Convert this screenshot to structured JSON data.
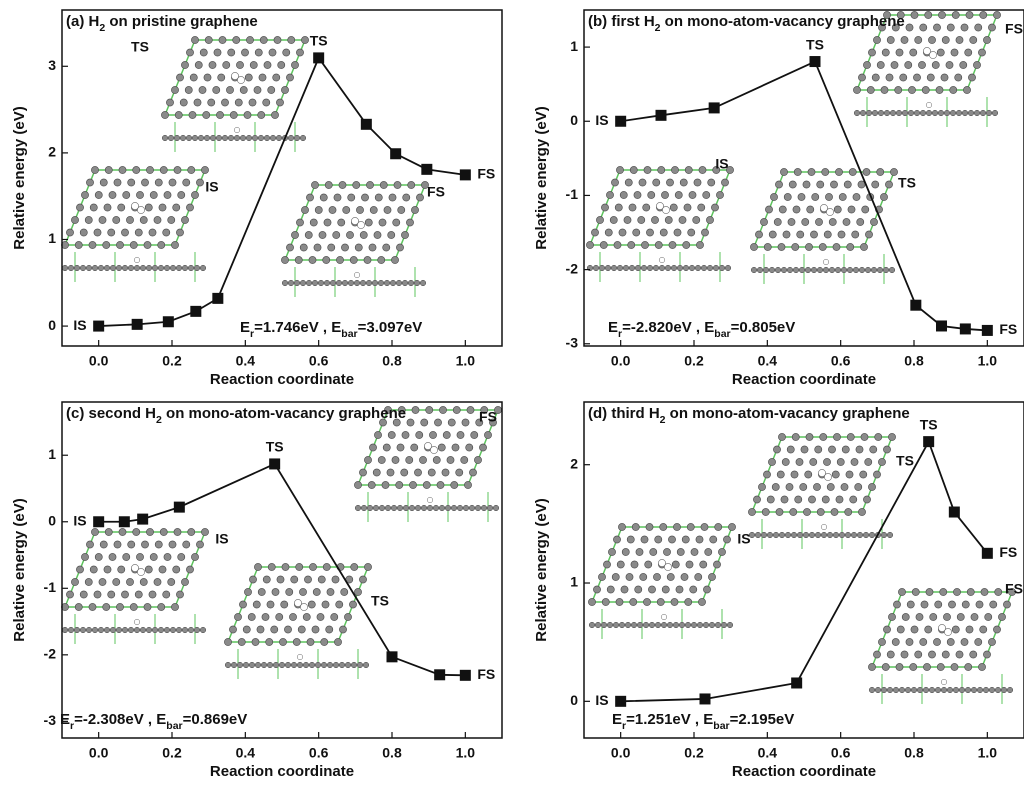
{
  "chart_data": [
    {
      "type": "line",
      "title": [
        {
          "text": "(a) H"
        },
        {
          "text": "2",
          "sub": true
        },
        {
          "text": " on pristine graphene"
        }
      ],
      "xlabel": "Reaction coordinate",
      "ylabel": "Relative energy (eV)",
      "x": [
        0.0,
        0.105,
        0.19,
        0.265,
        0.325,
        0.6,
        0.73,
        0.81,
        0.895,
        1.0
      ],
      "values": [
        0,
        0.02,
        0.05,
        0.17,
        0.32,
        3.097,
        2.33,
        1.99,
        1.81,
        1.746
      ],
      "point_labels": [
        "IS",
        null,
        null,
        null,
        null,
        "TS",
        null,
        null,
        null,
        "FS"
      ],
      "structure_labels": [
        "TS",
        "IS",
        "FS"
      ],
      "annotation": [
        {
          "text": "E"
        },
        {
          "text": "r",
          "sub": true
        },
        {
          "text": "=1.746eV , "
        },
        {
          "text": "E"
        },
        {
          "text": "bar",
          "sub": true
        },
        {
          "text": "=3.097eV"
        }
      ],
      "color": "#111111",
      "xlim": [
        -0.1,
        1.1
      ],
      "xticks": [
        {
          "value": 0,
          "label": "0.0"
        },
        0.2,
        0.4,
        0.6,
        0.8,
        {
          "value": 1,
          "label": "1.0"
        }
      ],
      "ylim": [
        -0.23,
        3.65
      ],
      "yticks": [
        0,
        1,
        2,
        3
      ],
      "grid": false
    },
    {
      "type": "line",
      "title": [
        {
          "text": "(b) first H"
        },
        {
          "text": "2",
          "sub": true
        },
        {
          "text": "  on mono-atom-vacancy graphene"
        }
      ],
      "xlabel": "Reaction coordinate",
      "ylabel": "Relative energy (eV)",
      "x": [
        0.0,
        0.11,
        0.255,
        0.53,
        0.805,
        0.875,
        0.94,
        1.0
      ],
      "values": [
        0,
        0.08,
        0.18,
        0.805,
        -2.48,
        -2.76,
        -2.8,
        -2.82
      ],
      "point_labels": [
        "IS",
        null,
        null,
        "TS",
        null,
        null,
        null,
        "FS"
      ],
      "structure_labels": [
        "IS",
        "TS",
        "FS"
      ],
      "annotation": [
        {
          "text": "E"
        },
        {
          "text": "r",
          "sub": true
        },
        {
          "text": "=-2.820eV , "
        },
        {
          "text": "E"
        },
        {
          "text": "bar",
          "sub": true
        },
        {
          "text": "=0.805eV"
        }
      ],
      "color": "#111111",
      "xlim": [
        -0.1,
        1.1
      ],
      "xticks": [
        {
          "value": 0,
          "label": "0.0"
        },
        0.2,
        0.4,
        0.6,
        0.8,
        {
          "value": 1,
          "label": "1.0"
        }
      ],
      "ylim": [
        -3.03,
        1.5
      ],
      "yticks": [
        -3,
        -2,
        -1,
        0,
        1
      ],
      "grid": false
    },
    {
      "type": "line",
      "title": [
        {
          "text": "(c) second H"
        },
        {
          "text": "2",
          "sub": true
        },
        {
          "text": " on mono-atom-vacancy graphene"
        }
      ],
      "xlabel": "Reaction coordinate",
      "ylabel": "Relative energy (eV)",
      "x": [
        0.0,
        0.07,
        0.12,
        0.22,
        0.48,
        0.8,
        0.93,
        1.0
      ],
      "values": [
        0,
        0.0,
        0.04,
        0.22,
        0.869,
        -2.03,
        -2.3,
        -2.308
      ],
      "point_labels": [
        "IS",
        null,
        null,
        null,
        "TS",
        null,
        null,
        "FS"
      ],
      "structure_labels": [
        "FS",
        "IS",
        "TS"
      ],
      "annotation": [
        {
          "text": "E"
        },
        {
          "text": "r",
          "sub": true
        },
        {
          "text": "=-2.308eV , "
        },
        {
          "text": "E"
        },
        {
          "text": "bar",
          "sub": true
        },
        {
          "text": "=0.869eV"
        }
      ],
      "color": "#111111",
      "xlim": [
        -0.1,
        1.1
      ],
      "xticks": [
        {
          "value": 0,
          "label": "0.0"
        },
        0.2,
        0.4,
        0.6,
        0.8,
        {
          "value": 1,
          "label": "1.0"
        }
      ],
      "ylim": [
        -3.25,
        1.8
      ],
      "yticks": [
        -3,
        -2,
        -1,
        0,
        1
      ],
      "grid": false
    },
    {
      "type": "line",
      "title": [
        {
          "text": "(d) third H"
        },
        {
          "text": "2",
          "sub": true
        },
        {
          "text": " on mono-atom-vacancy graphene"
        }
      ],
      "xlabel": "Reaction coordinate",
      "ylabel": "Relative energy (eV)",
      "x": [
        0.0,
        0.23,
        0.48,
        0.84,
        0.91,
        1.0
      ],
      "values": [
        0,
        0.02,
        0.155,
        2.195,
        1.6,
        1.251
      ],
      "point_labels": [
        "IS",
        null,
        null,
        "TS",
        null,
        "FS"
      ],
      "structure_labels": [
        "TS",
        "IS",
        "FS"
      ],
      "annotation": [
        {
          "text": "E"
        },
        {
          "text": "r",
          "sub": true
        },
        {
          "text": "=1.251eV , "
        },
        {
          "text": "E"
        },
        {
          "text": "bar",
          "sub": true
        },
        {
          "text": "=2.195eV"
        }
      ],
      "color": "#111111",
      "xlim": [
        -0.1,
        1.1
      ],
      "xticks": [
        {
          "value": 0,
          "label": "0.0"
        },
        0.2,
        0.4,
        0.6,
        0.8,
        {
          "value": 1,
          "label": "1.0"
        }
      ],
      "ylim": [
        -0.31,
        2.53
      ],
      "yticks": [
        0,
        1,
        2
      ],
      "grid": false
    }
  ]
}
